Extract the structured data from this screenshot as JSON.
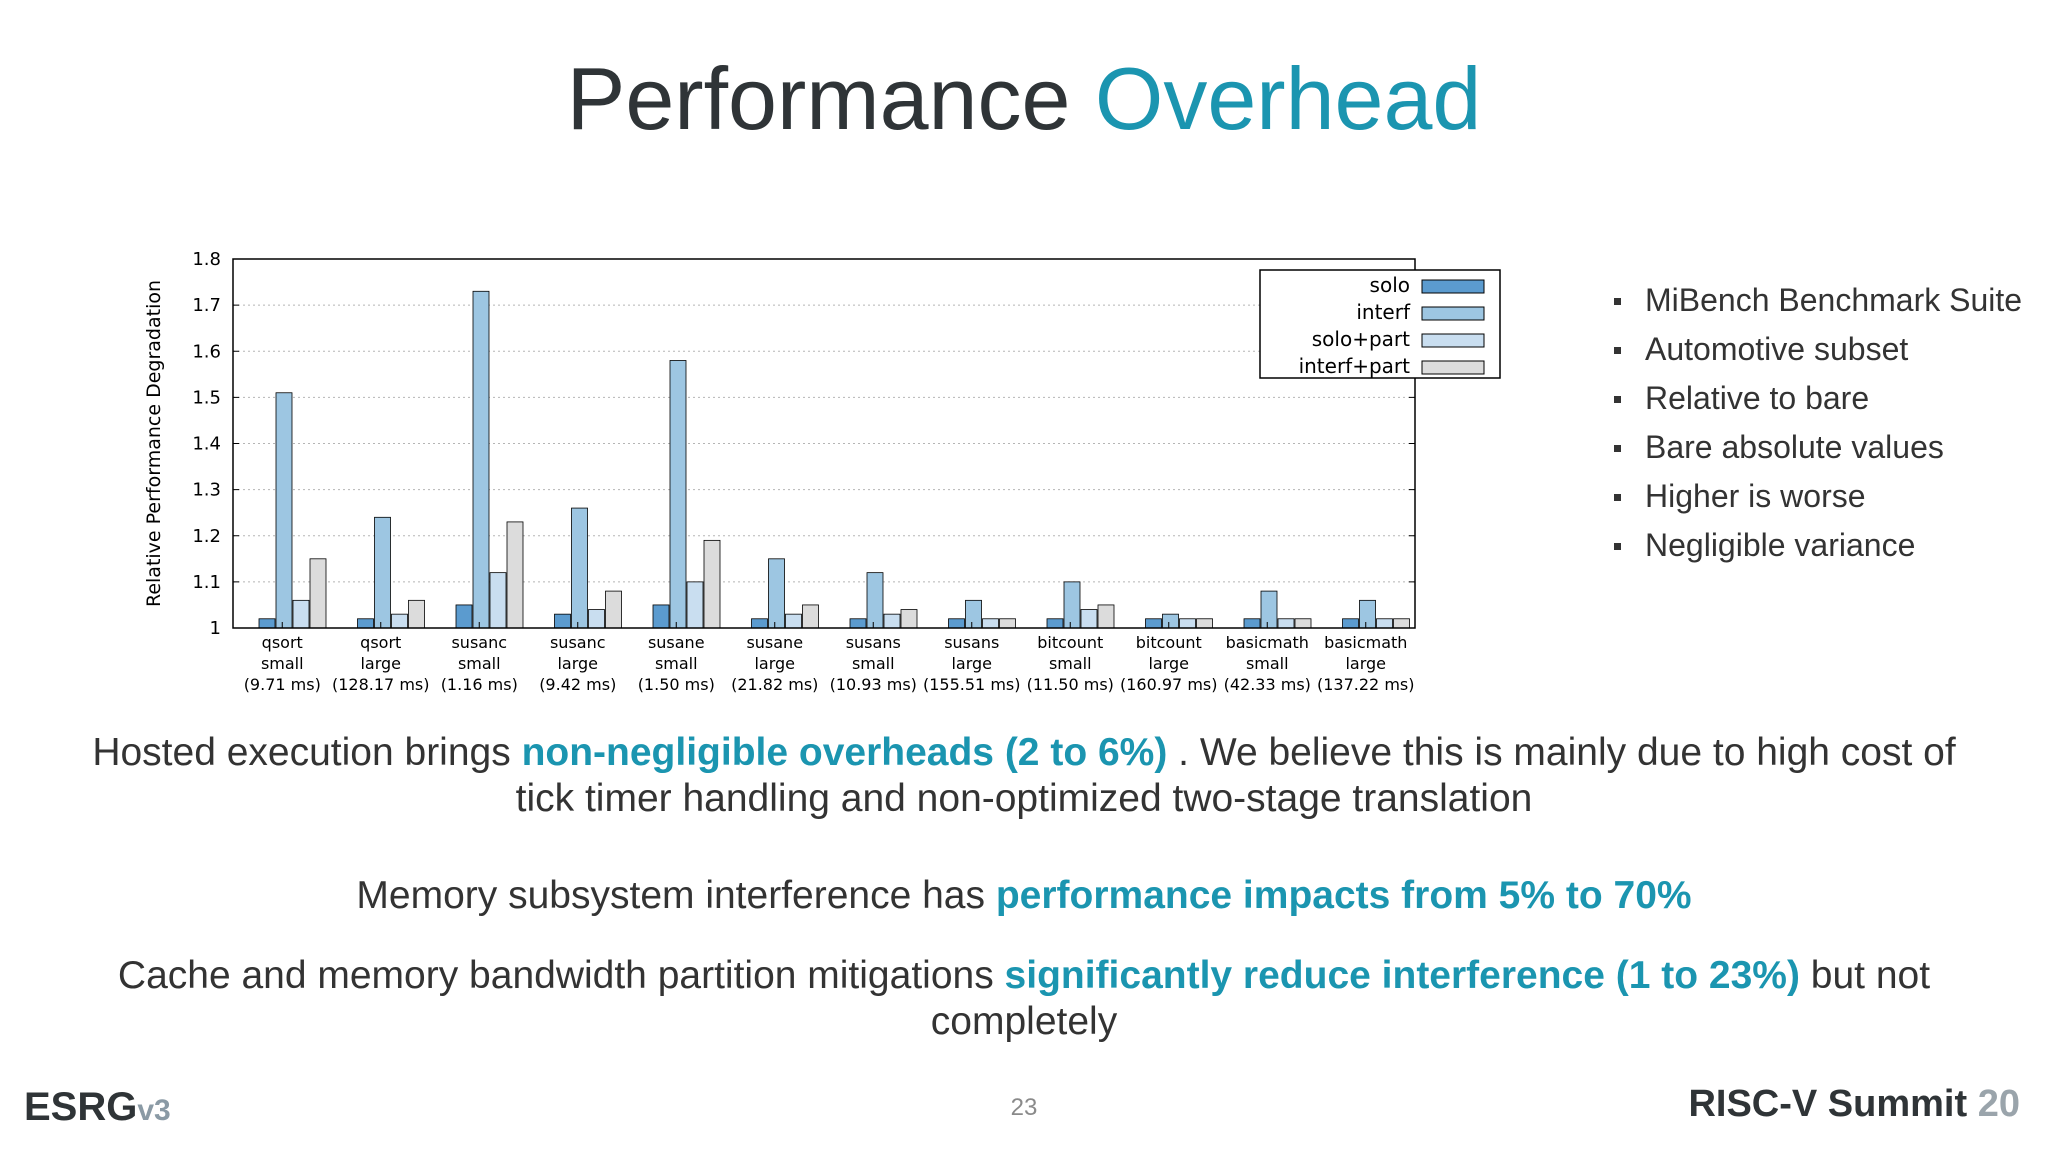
{
  "slide": {
    "title_main": "Performance",
    "title_accent": "Overhead",
    "page_number": "23",
    "footer_left_main": "ESRG",
    "footer_left_version": "v3",
    "footer_right_main": "RISC-V Summit",
    "footer_right_year": "20"
  },
  "bullets": [
    "MiBench Benchmark Suite",
    "Automotive subset",
    "Relative to bare",
    "Bare absolute values",
    "Higher is worse",
    "Negligible variance"
  ],
  "paragraphs": {
    "p1_a": "Hosted execution brings",
    "p1_hl": "non-negligible overheads (2 to 6%)",
    "p1_b": ". We believe this is mainly due to high cost of tick timer handling and non-optimized two-stage translation",
    "p2_a": "Memory subsystem interference has",
    "p2_hl": "performance impacts from 5% to 70%",
    "p3_a": "Cache and memory bandwidth partition mitigations",
    "p3_hl": "significantly reduce interference (1 to 23%)",
    "p3_b": "but not completely"
  },
  "colors": {
    "accent": "#1b95b0",
    "solo": "#5b9bcf",
    "interf": "#9dc6e2",
    "solo_part": "#c9def0",
    "interf_part": "#dcdcdc"
  },
  "chart_data": {
    "type": "bar",
    "ylabel": "Relative Performance Degradation",
    "ylim": [
      1,
      1.8
    ],
    "yticks": [
      "1",
      "1.1",
      "1.2",
      "1.3",
      "1.4",
      "1.5",
      "1.6",
      "1.7",
      "1.8"
    ],
    "grid": true,
    "legend_position": "top-right",
    "categories": [
      [
        "qsort",
        "small",
        "(9.71 ms)"
      ],
      [
        "qsort",
        "large",
        "(128.17 ms)"
      ],
      [
        "susanc",
        "small",
        "(1.16 ms)"
      ],
      [
        "susanc",
        "large",
        "(9.42 ms)"
      ],
      [
        "susane",
        "small",
        "(1.50 ms)"
      ],
      [
        "susane",
        "large",
        "(21.82 ms)"
      ],
      [
        "susans",
        "small",
        "(10.93 ms)"
      ],
      [
        "susans",
        "large",
        "(155.51 ms)"
      ],
      [
        "bitcount",
        "small",
        "(11.50 ms)"
      ],
      [
        "bitcount",
        "large",
        "(160.97 ms)"
      ],
      [
        "basicmath",
        "small",
        "(42.33 ms)"
      ],
      [
        "basicmath",
        "large",
        "(137.22 ms)"
      ]
    ],
    "series": [
      {
        "name": "solo",
        "values": [
          1.02,
          1.02,
          1.05,
          1.03,
          1.05,
          1.02,
          1.02,
          1.02,
          1.02,
          1.02,
          1.02,
          1.02
        ]
      },
      {
        "name": "interf",
        "values": [
          1.51,
          1.24,
          1.73,
          1.26,
          1.58,
          1.15,
          1.12,
          1.06,
          1.1,
          1.03,
          1.08,
          1.06
        ]
      },
      {
        "name": "solo+part",
        "values": [
          1.06,
          1.03,
          1.12,
          1.04,
          1.1,
          1.03,
          1.03,
          1.02,
          1.04,
          1.02,
          1.02,
          1.02
        ]
      },
      {
        "name": "interf+part",
        "values": [
          1.15,
          1.06,
          1.23,
          1.08,
          1.19,
          1.05,
          1.04,
          1.02,
          1.05,
          1.02,
          1.02,
          1.02
        ]
      }
    ]
  }
}
